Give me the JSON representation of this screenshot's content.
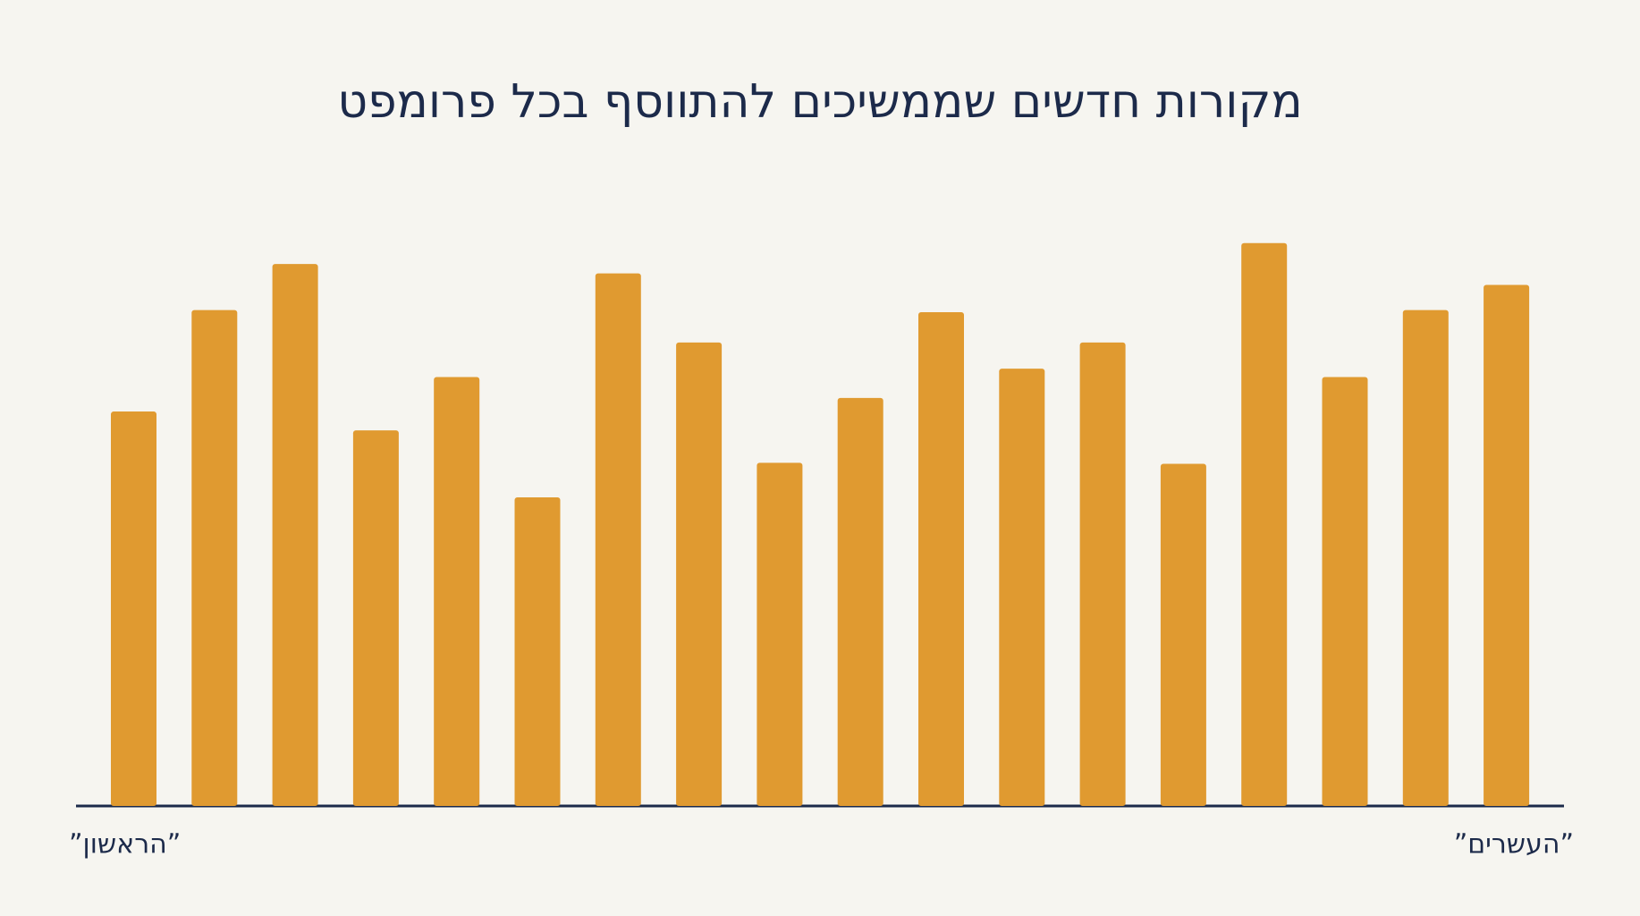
{
  "chart_data": {
    "type": "bar",
    "title": "מקורות חדשים שממשיכים להתווסף בכל פרומפט",
    "categories": [
      "”הראשון”",
      null,
      null,
      null,
      null,
      null,
      null,
      null,
      null,
      null,
      null,
      null,
      null,
      null,
      null,
      null,
      null,
      "”העשרים”"
    ],
    "values": [
      377,
      474,
      518,
      359,
      410,
      295,
      509,
      443,
      328,
      390,
      472,
      418,
      443,
      327,
      538,
      410,
      474,
      498
    ],
    "color": "#E09A30"
  }
}
